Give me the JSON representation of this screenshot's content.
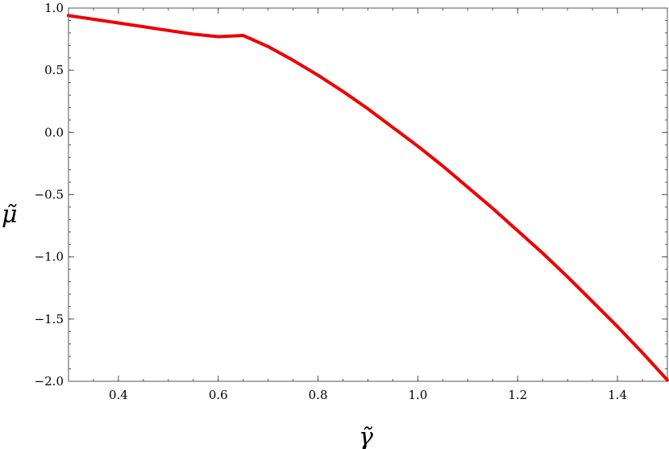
{
  "chart_data": {
    "type": "line",
    "title": "",
    "xlabel": "γ̃",
    "ylabel": "μ̃",
    "xlim": [
      0.3,
      1.5
    ],
    "ylim": [
      -2.0,
      1.0
    ],
    "grid": false,
    "legend": "none",
    "x_ticks": [
      0.4,
      0.6,
      0.8,
      1.0,
      1.2,
      1.4
    ],
    "x_tick_labels": [
      "0.4",
      "0.6",
      "0.8",
      "1.0",
      "1.2",
      "1.4"
    ],
    "y_ticks": [
      1.0,
      0.5,
      0.0,
      -0.5,
      -1.0,
      -1.5,
      -2.0
    ],
    "y_tick_labels": [
      "1.0",
      "0.5",
      "0.0",
      "−0.5",
      "−1.0",
      "−1.5",
      "−2.0"
    ],
    "series": [
      {
        "color": "#ee0000",
        "x": [
          0.3,
          0.35,
          0.4,
          0.45,
          0.5,
          0.55,
          0.6,
          0.65,
          0.7,
          0.75,
          0.8,
          0.85,
          0.9,
          0.95,
          1.0,
          1.05,
          1.1,
          1.15,
          1.2,
          1.25,
          1.3,
          1.35,
          1.4,
          1.45,
          1.5
        ],
        "y": [
          0.94,
          0.91,
          0.88,
          0.85,
          0.82,
          0.79,
          0.77,
          0.78,
          0.69,
          0.58,
          0.46,
          0.33,
          0.19,
          0.04,
          -0.11,
          -0.27,
          -0.44,
          -0.61,
          -0.79,
          -0.97,
          -1.16,
          -1.36,
          -1.56,
          -1.77,
          -1.99
        ]
      }
    ]
  }
}
